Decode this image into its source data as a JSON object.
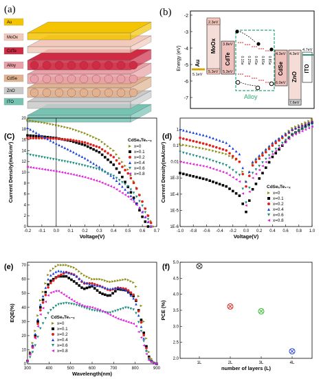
{
  "panels": {
    "a": {
      "letter": "(a)",
      "layers": [
        {
          "label": "Au",
          "color": "#f5c400"
        },
        {
          "label": "MoOx",
          "color": "#f3c9bb"
        },
        {
          "label": "CdTe",
          "color": "#cf2b45"
        },
        {
          "label": "Alloy",
          "color": "#e9a0a6"
        },
        {
          "label": "CdSe",
          "color": "#e0b290"
        },
        {
          "label": "ZnO",
          "color": "#c9c9c9"
        },
        {
          "label": "ITO",
          "color": "#76c3b4"
        }
      ]
    },
    "b": {
      "letter": "(b)",
      "ylabel": "Energy (eV)",
      "yticks": [
        "-2",
        "-3",
        "-4",
        "-5",
        "-6",
        "-7"
      ],
      "materials": [
        "Au",
        "MoOx",
        "CdTe",
        "CdSe",
        "ZnO",
        "ITO"
      ],
      "levels": [
        "5.1eV",
        "2.3eV",
        "5.3eV",
        "3.8eV",
        "5.3eV",
        "4.3eV",
        "6.0eV",
        "4.3eV",
        "7.6eV",
        "4.7eV"
      ],
      "alloy_compositions": [
        "0.1Se",
        "0.2Se",
        "0.4Se",
        "0.6Se",
        "0.8Se"
      ],
      "alloy_label": "Alloy"
    },
    "c": {
      "letter": "(C)",
      "legend_title": "CdSeₓTe₁₋ₓ",
      "xlabel": "Voltage(V)",
      "ylabel": "Current Density(mA/cm²)",
      "xticks": [
        "-0.2",
        "-0.1",
        "0.0",
        "0.1",
        "0.2",
        "0.3",
        "0.4",
        "0.5",
        "0.6",
        "0.7"
      ],
      "yticks": [
        "0",
        "2",
        "4",
        "6",
        "8",
        "10",
        "12",
        "14",
        "16",
        "18",
        "20"
      ]
    },
    "d": {
      "letter": "(d)",
      "legend_title": "CdSeₓTe₁₋ₓ",
      "xlabel": "Voltage(V)",
      "ylabel": "Current Density(mA/cm²)",
      "xticks": [
        "-1.0",
        "-0.8",
        "-0.6",
        "-0.4",
        "-0.2",
        "0.0",
        "0.2",
        "0.4",
        "0.6",
        "0.8",
        "1.0"
      ],
      "yticks": [
        "1",
        "0.1",
        "0.01",
        "1E-3",
        "1E-4",
        "1E-5",
        "1E-6"
      ]
    },
    "e": {
      "letter": "(e)",
      "legend_title": "CdSeₓTe₁₋ₓ",
      "xlabel": "Wavelength(nm)",
      "ylabel": "EQE(%)",
      "xticks": [
        "300",
        "400",
        "500",
        "600",
        "700",
        "800",
        "900"
      ],
      "yticks": [
        "0",
        "10",
        "20",
        "30",
        "40",
        "50",
        "60",
        "70"
      ]
    },
    "f": {
      "letter": "(f)",
      "xlabel": "number of layers (L)",
      "ylabel": "PCE (%)",
      "xticks": [
        "1L",
        "2L",
        "3L",
        "4L"
      ],
      "yticks": [
        "2.0",
        "2.5",
        "3.0",
        "3.5",
        "4.0",
        "4.5",
        "5.0"
      ]
    }
  },
  "series_legend": [
    {
      "name": "x=0",
      "color": "#8c8c14",
      "marker": "triangle-right"
    },
    {
      "name": "x=0.1",
      "color": "#000000",
      "marker": "square"
    },
    {
      "name": "x=0.2",
      "color": "#e0201c",
      "marker": "circle"
    },
    {
      "name": "x=0.4",
      "color": "#1840e0",
      "marker": "triangle-up"
    },
    {
      "name": "x=0.6",
      "color": "#1e8c7c",
      "marker": "triangle-down"
    },
    {
      "name": "x=0.8",
      "color": "#e020e0",
      "marker": "triangle-left"
    }
  ],
  "chart_data": [
    {
      "type": "line",
      "panel": "c",
      "xlabel": "Voltage(V)",
      "ylabel": "Current Density(mA/cm²)",
      "xlim": [
        -0.2,
        0.7
      ],
      "ylim": [
        0,
        20
      ],
      "series": [
        {
          "name": "x=0",
          "x": [
            -0.2,
            -0.1,
            0.0,
            0.1,
            0.2,
            0.3,
            0.4,
            0.5,
            0.55,
            0.6,
            0.65,
            0.68
          ],
          "y": [
            19.6,
            19.2,
            18.7,
            18.1,
            17.2,
            16.0,
            14.0,
            10.5,
            7.8,
            4.6,
            1.5,
            0.0
          ]
        },
        {
          "name": "x=0.1",
          "x": [
            -0.2,
            -0.1,
            0.0,
            0.1,
            0.2,
            0.3,
            0.4,
            0.45,
            0.5,
            0.55,
            0.6,
            0.64
          ],
          "y": [
            16.8,
            16.6,
            16.3,
            15.8,
            15.0,
            13.7,
            11.4,
            9.6,
            7.3,
            4.8,
            1.8,
            0.0
          ]
        },
        {
          "name": "x=0.2",
          "x": [
            -0.2,
            -0.1,
            0.0,
            0.1,
            0.2,
            0.3,
            0.4,
            0.5,
            0.55,
            0.6,
            0.64,
            0.67
          ],
          "y": [
            16.3,
            16.3,
            16.2,
            16.0,
            15.5,
            14.6,
            12.8,
            9.8,
            7.6,
            4.6,
            2.0,
            0.0
          ]
        },
        {
          "name": "x=0.4",
          "x": [
            -0.2,
            -0.1,
            0.0,
            0.1,
            0.2,
            0.3,
            0.4,
            0.5,
            0.55,
            0.6,
            0.63,
            0.66
          ],
          "y": [
            18.2,
            16.7,
            15.3,
            14.0,
            12.6,
            11.0,
            9.0,
            6.3,
            4.7,
            2.7,
            1.3,
            0.0
          ]
        },
        {
          "name": "x=0.6",
          "x": [
            -0.2,
            -0.1,
            0.0,
            0.1,
            0.2,
            0.3,
            0.4,
            0.5,
            0.55,
            0.6,
            0.63,
            0.66
          ],
          "y": [
            13.3,
            12.8,
            12.3,
            11.8,
            11.2,
            10.5,
            9.3,
            7.4,
            5.9,
            3.8,
            2.0,
            0.0
          ]
        },
        {
          "name": "x=0.8",
          "x": [
            -0.2,
            -0.1,
            0.0,
            0.1,
            0.2,
            0.3,
            0.4,
            0.5,
            0.55,
            0.6,
            0.63,
            0.66
          ],
          "y": [
            11.0,
            10.6,
            10.2,
            9.7,
            9.1,
            8.3,
            7.2,
            5.5,
            4.3,
            2.7,
            1.3,
            0.0
          ]
        }
      ]
    },
    {
      "type": "scatter",
      "panel": "d",
      "xlabel": "Voltage(V)",
      "ylabel": "Current Density(mA/cm²)",
      "xlim": [
        -1.0,
        1.0
      ],
      "ylim": [
        1e-06,
        5
      ],
      "yscale": "log",
      "series": [
        {
          "name": "x=0",
          "x": [
            -1.0,
            -0.6,
            -0.3,
            -0.1,
            0.0,
            0.1,
            0.4,
            0.7,
            1.0
          ],
          "y": [
            0.12,
            0.06,
            0.03,
            0.01,
            0.0006,
            0.008,
            0.12,
            1.2,
            4.0
          ]
        },
        {
          "name": "x=0.1",
          "x": [
            -1.0,
            -0.6,
            -0.3,
            -0.1,
            0.0,
            0.1,
            0.4,
            0.7,
            1.0
          ],
          "y": [
            0.002,
            0.0008,
            0.0003,
            8e-05,
            8e-06,
            0.0002,
            0.02,
            0.5,
            2.5
          ]
        },
        {
          "name": "x=0.2",
          "x": [
            -1.0,
            -0.6,
            -0.3,
            -0.1,
            0.0,
            0.1,
            0.4,
            0.7,
            1.0
          ],
          "y": [
            0.3,
            0.12,
            0.05,
            0.01,
            0.0003,
            0.006,
            0.1,
            0.9,
            3.0
          ]
        },
        {
          "name": "x=0.4",
          "x": [
            -1.0,
            -0.6,
            -0.3,
            -0.1,
            0.0,
            0.1,
            0.4,
            0.7,
            1.0
          ],
          "y": [
            1.0,
            0.4,
            0.15,
            0.03,
            0.0006,
            0.01,
            0.15,
            1.0,
            3.0
          ]
        },
        {
          "name": "x=0.6",
          "x": [
            -1.0,
            -0.6,
            -0.3,
            -0.1,
            0.0,
            0.1,
            0.4,
            0.7,
            1.0
          ],
          "y": [
            0.04,
            0.015,
            0.006,
            0.0015,
            3e-05,
            0.002,
            0.04,
            0.5,
            2.0
          ]
        },
        {
          "name": "x=0.8",
          "x": [
            -1.0,
            -0.6,
            -0.3,
            -0.1,
            0.0,
            0.1,
            0.4,
            0.7,
            1.0
          ],
          "y": [
            0.01,
            0.005,
            0.002,
            0.0006,
            2e-05,
            0.001,
            0.03,
            0.4,
            1.5
          ]
        }
      ]
    },
    {
      "type": "line",
      "panel": "e",
      "xlabel": "Wavelength(nm)",
      "ylabel": "EQE(%)",
      "xlim": [
        300,
        900
      ],
      "ylim": [
        0,
        72
      ],
      "series": [
        {
          "name": "x=0",
          "x": [
            300,
            330,
            360,
            400,
            440,
            480,
            520,
            560,
            600,
            640,
            680,
            720,
            760,
            800,
            830,
            860,
            880,
            900
          ],
          "y": [
            2,
            18,
            45,
            65,
            70,
            70,
            68,
            63,
            60,
            60,
            58,
            59,
            60,
            57,
            40,
            10,
            2,
            0
          ]
        },
        {
          "name": "x=0.1",
          "x": [
            300,
            330,
            360,
            400,
            440,
            480,
            520,
            560,
            600,
            640,
            680,
            720,
            760,
            800,
            830,
            860,
            880,
            900
          ],
          "y": [
            2,
            15,
            40,
            58,
            62,
            62,
            58,
            53,
            55,
            50,
            48,
            53,
            52,
            47,
            30,
            6,
            1,
            0
          ]
        },
        {
          "name": "x=0.2",
          "x": [
            300,
            330,
            360,
            400,
            440,
            480,
            520,
            560,
            600,
            640,
            680,
            720,
            760,
            800,
            830,
            860,
            880,
            900
          ],
          "y": [
            2,
            14,
            38,
            56,
            62,
            65,
            63,
            57,
            57,
            55,
            52,
            54,
            53,
            48,
            28,
            5,
            1,
            0
          ]
        },
        {
          "name": "x=0.4",
          "x": [
            300,
            330,
            360,
            400,
            440,
            480,
            520,
            560,
            600,
            640,
            680,
            720,
            760,
            800,
            830,
            860,
            880,
            900
          ],
          "y": [
            2,
            16,
            42,
            62,
            66,
            65,
            63,
            58,
            56,
            55,
            53,
            54,
            52,
            45,
            25,
            4,
            1,
            0
          ]
        },
        {
          "name": "x=0.6",
          "x": [
            300,
            330,
            360,
            400,
            440,
            480,
            520,
            560,
            600,
            640,
            680,
            720,
            760,
            800,
            830,
            860,
            880,
            900
          ],
          "y": [
            1,
            10,
            25,
            37,
            42,
            43,
            42,
            40,
            38,
            37,
            36,
            38,
            40,
            38,
            22,
            4,
            1,
            0
          ]
        },
        {
          "name": "x=0.8",
          "x": [
            300,
            330,
            360,
            400,
            440,
            480,
            520,
            560,
            600,
            640,
            680,
            720,
            760,
            800,
            830,
            860,
            880,
            900
          ],
          "y": [
            2,
            14,
            35,
            50,
            52,
            48,
            44,
            41,
            40,
            38,
            35,
            32,
            30,
            28,
            18,
            3,
            1,
            0
          ]
        }
      ]
    },
    {
      "type": "scatter",
      "panel": "f",
      "xlabel": "number of layers (L)",
      "ylabel": "PCE (%)",
      "categories": [
        "1L",
        "2L",
        "3L",
        "4L"
      ],
      "ylim": [
        2.0,
        5.0
      ],
      "values": [
        4.88,
        3.62,
        3.47,
        2.22
      ],
      "colors": [
        "#333333",
        "#e0201c",
        "#2ec02e",
        "#2440e0"
      ]
    }
  ]
}
